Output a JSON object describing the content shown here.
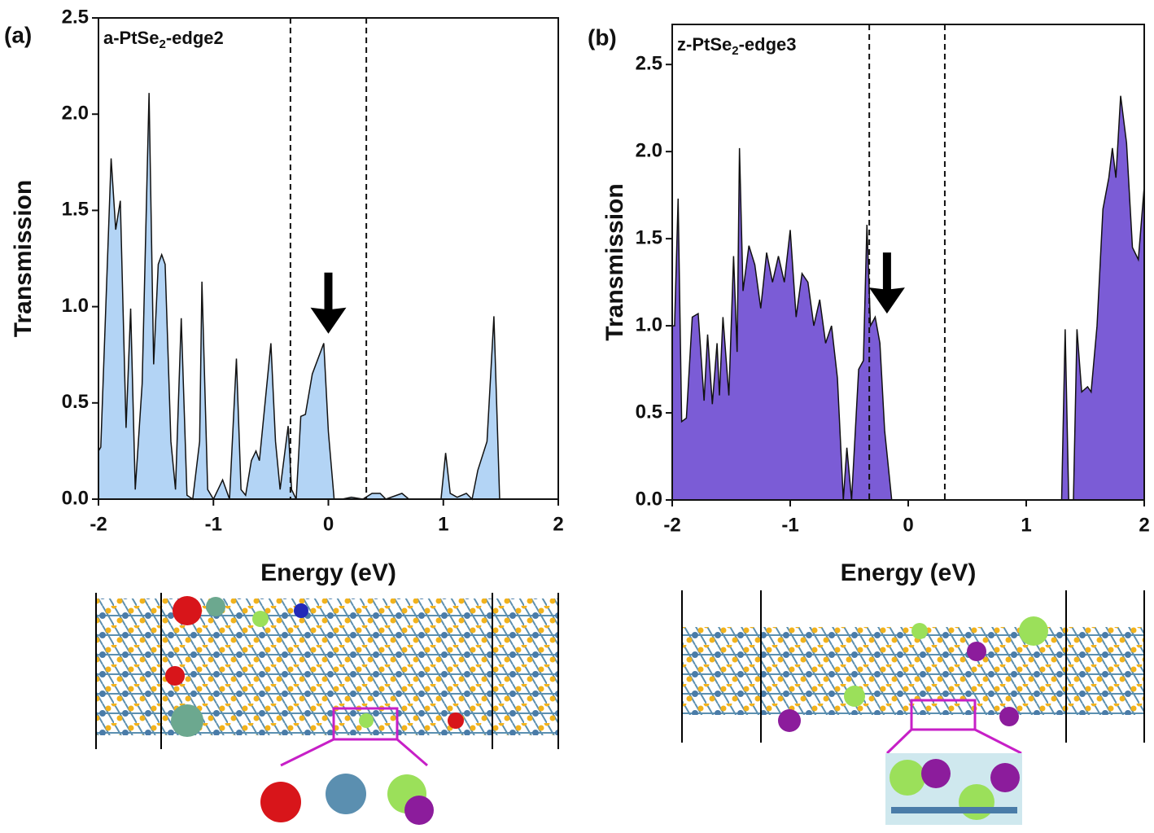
{
  "chart_data": [
    {
      "type": "area",
      "panel_label": "(a)",
      "title": [
        "a-PtSe",
        "2",
        "-edge2"
      ],
      "xlabel": "Energy (eV)",
      "ylabel": "Transmission",
      "color": "#b3d4f5",
      "xlim": [
        -2,
        2
      ],
      "ylim": [
        0,
        2.5
      ],
      "xticks": [
        -2,
        -1,
        0,
        1,
        2
      ],
      "yticks": [
        {
          "value": 0,
          "label": "0.0"
        },
        {
          "value": 0.5,
          "label": "0.5"
        },
        {
          "value": 1,
          "label": "1.0"
        },
        {
          "value": 1.5,
          "label": "1.5"
        },
        {
          "value": 2,
          "label": "2.0"
        },
        {
          "value": 2.5,
          "label": "2.5"
        }
      ],
      "vlines": [
        -0.33,
        0.33
      ],
      "arrow": {
        "x": 0,
        "y": 0.86
      },
      "x": [
        -2,
        -1.98,
        -1.89,
        -1.85,
        -1.81,
        -1.76,
        -1.72,
        -1.68,
        -1.62,
        -1.56,
        -1.52,
        -1.48,
        -1.45,
        -1.42,
        -1.37,
        -1.33,
        -1.28,
        -1.23,
        -1.18,
        -1.12,
        -1.1,
        -1.05,
        -1.0,
        -0.96,
        -0.92,
        -0.86,
        -0.8,
        -0.76,
        -0.72,
        -0.67,
        -0.63,
        -0.6,
        -0.5,
        -0.46,
        -0.42,
        -0.35,
        -0.32,
        -0.28,
        -0.24,
        -0.2,
        -0.14,
        -0.04,
        0.0,
        0.05,
        0.12,
        0.2,
        0.3,
        0.38,
        0.45,
        0.5,
        0.64,
        0.7,
        0.98,
        1.02,
        1.06,
        1.12,
        1.2,
        1.25,
        1.3,
        1.38,
        1.44,
        1.49
      ],
      "values": [
        0.25,
        0.27,
        1.77,
        1.4,
        1.55,
        0.37,
        0.99,
        0.05,
        0.6,
        2.11,
        0.7,
        1.22,
        1.27,
        1.22,
        0.3,
        0.05,
        0.94,
        0.02,
        0,
        0.3,
        1.13,
        0.05,
        0,
        0.05,
        0.1,
        0,
        0.73,
        0.05,
        0.02,
        0.2,
        0.25,
        0.2,
        0.81,
        0.3,
        0.05,
        0.38,
        0.05,
        0,
        0.43,
        0.44,
        0.65,
        0.81,
        0.35,
        0,
        0,
        0.01,
        0,
        0.03,
        0.03,
        0,
        0.03,
        0,
        0,
        0.24,
        0.03,
        0.01,
        0.03,
        0,
        0.15,
        0.3,
        0.95,
        0
      ]
    },
    {
      "type": "area",
      "panel_label": "(b)",
      "title": [
        "z-PtSe",
        "2",
        "-edge3"
      ],
      "xlabel": "Energy (eV)",
      "ylabel": "Transmission",
      "color": "#7b5cd6",
      "xlim": [
        -2,
        2
      ],
      "ylim": [
        0,
        2.73
      ],
      "xticks": [
        -2,
        -1,
        0,
        1,
        2
      ],
      "yticks": [
        {
          "value": 0,
          "label": "0.0"
        },
        {
          "value": 0.5,
          "label": "0.5"
        },
        {
          "value": 1,
          "label": "1.0"
        },
        {
          "value": 1.5,
          "label": "1.5"
        },
        {
          "value": 2,
          "label": "2.0"
        },
        {
          "value": 2.5,
          "label": "2.5"
        }
      ],
      "vlines": [
        -0.33,
        0.31
      ],
      "arrow": {
        "x": -0.18,
        "y": 1.07
      },
      "x": [
        -2,
        -1.98,
        -1.95,
        -1.92,
        -1.88,
        -1.83,
        -1.78,
        -1.73,
        -1.7,
        -1.66,
        -1.62,
        -1.6,
        -1.57,
        -1.52,
        -1.48,
        -1.45,
        -1.43,
        -1.4,
        -1.35,
        -1.3,
        -1.25,
        -1.2,
        -1.15,
        -1.1,
        -1.05,
        -1.0,
        -0.95,
        -0.9,
        -0.85,
        -0.8,
        -0.75,
        -0.7,
        -0.65,
        -0.6,
        -0.55,
        -0.52,
        -0.48,
        -0.42,
        -0.38,
        -0.35,
        -0.32,
        -0.28,
        -0.24,
        -0.2,
        -0.14,
        1.3,
        1.33,
        1.36,
        1.4,
        1.43,
        1.47,
        1.52,
        1.55,
        1.6,
        1.65,
        1.7,
        1.73,
        1.76,
        1.8,
        1.85,
        1.9,
        1.95,
        2.0
      ],
      "values": [
        1.0,
        1.0,
        1.73,
        0.45,
        0.47,
        1.05,
        1.07,
        0.57,
        0.95,
        0.55,
        0.9,
        0.6,
        1.05,
        0.6,
        1.4,
        0.85,
        2.02,
        1.2,
        1.46,
        1.35,
        1.1,
        1.42,
        1.25,
        1.4,
        1.25,
        1.55,
        1.05,
        1.3,
        1.25,
        1.0,
        1.15,
        0.9,
        1.0,
        0.7,
        0,
        0.3,
        0,
        0.75,
        0.8,
        1.58,
        1.0,
        1.05,
        0.9,
        0.4,
        0,
        0,
        0.98,
        0,
        0,
        0.98,
        0.62,
        0.65,
        0.62,
        1.0,
        1.67,
        1.85,
        2.02,
        1.85,
        2.32,
        2.05,
        1.45,
        1.38,
        1.8
      ]
    }
  ]
}
